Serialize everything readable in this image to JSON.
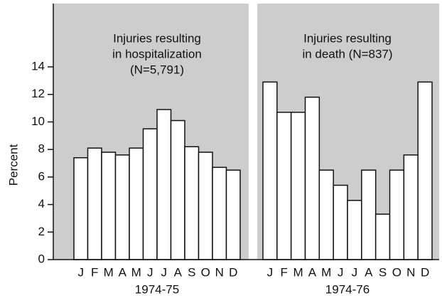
{
  "chart_data": [
    {
      "type": "bar",
      "title": [
        "Injuries resulting",
        "in hospitalization",
        "(N=5,791)"
      ],
      "categories": [
        "J",
        "F",
        "M",
        "A",
        "M",
        "J",
        "J",
        "A",
        "S",
        "O",
        "N",
        "D"
      ],
      "values": [
        7.4,
        8.1,
        7.8,
        7.6,
        8.1,
        9.5,
        10.9,
        10.1,
        8.2,
        7.8,
        6.7,
        6.5
      ],
      "xlabel": "1974-75",
      "ylabel": "Percent",
      "color": "#ffffff",
      "ylim": [
        0,
        18.6
      ],
      "yticks": [
        0,
        2,
        4,
        6,
        8,
        10,
        12,
        14
      ]
    },
    {
      "type": "bar",
      "title": [
        "Injuries resulting",
        "in death (N=837)"
      ],
      "categories": [
        "J",
        "F",
        "M",
        "A",
        "M",
        "J",
        "J",
        "A",
        "S",
        "O",
        "N",
        "D"
      ],
      "values": [
        12.9,
        10.7,
        10.7,
        11.8,
        6.5,
        5.4,
        4.3,
        6.5,
        3.3,
        6.5,
        7.6,
        12.9
      ],
      "xlabel": "1974-76",
      "color": "#ffffff",
      "ylim": [
        0,
        18.6
      ]
    }
  ]
}
